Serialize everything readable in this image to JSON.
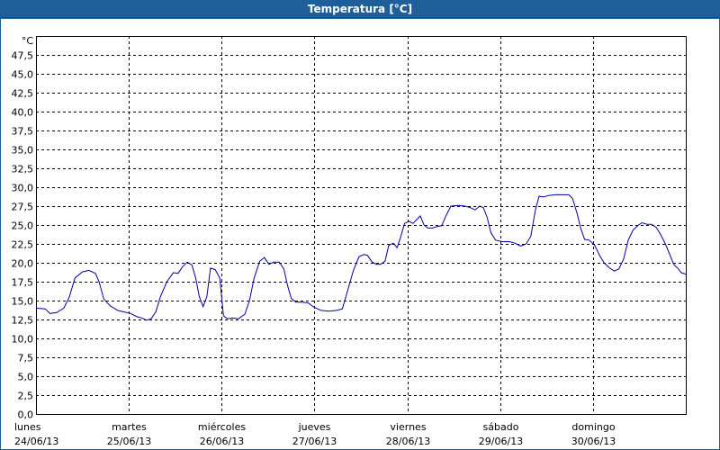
{
  "window": {
    "title": "Temperatura [°C]"
  },
  "chart_data": {
    "type": "line",
    "title": "Temperatura [°C]",
    "ylabel": "°C",
    "ylim": [
      0,
      50
    ],
    "yticks": [
      "0,0",
      "2,5",
      "5,0",
      "7,5",
      "10,0",
      "12,5",
      "15,0",
      "17,5",
      "20,0",
      "22,5",
      "25,0",
      "27,5",
      "30,0",
      "32,5",
      "35,0",
      "37,5",
      "40,0",
      "42,5",
      "45,0",
      "47,5"
    ],
    "xlim": [
      0,
      7
    ],
    "x_labels": [
      {
        "day": "lunes",
        "date": "24/06/13"
      },
      {
        "day": "martes",
        "date": "25/06/13"
      },
      {
        "day": "miércoles",
        "date": "26/06/13"
      },
      {
        "day": "jueves",
        "date": "27/06/13"
      },
      {
        "day": "viernes",
        "date": "28/06/13"
      },
      {
        "day": "sábado",
        "date": "29/06/13"
      },
      {
        "day": "domingo",
        "date": "30/06/13"
      }
    ],
    "grid": true,
    "series": [
      {
        "color": "#0000a0",
        "points": [
          [
            0.0,
            14.0
          ],
          [
            0.1,
            13.9
          ],
          [
            0.15,
            13.3
          ],
          [
            0.22,
            13.4
          ],
          [
            0.3,
            14.0
          ],
          [
            0.36,
            15.5
          ],
          [
            0.42,
            18.0
          ],
          [
            0.5,
            18.8
          ],
          [
            0.57,
            19.0
          ],
          [
            0.64,
            18.6
          ],
          [
            0.68,
            17.5
          ],
          [
            0.73,
            15.2
          ],
          [
            0.8,
            14.3
          ],
          [
            0.88,
            13.7
          ],
          [
            0.95,
            13.5
          ],
          [
            1.02,
            13.3
          ],
          [
            1.08,
            12.9
          ],
          [
            1.14,
            12.7
          ],
          [
            1.19,
            12.4
          ],
          [
            1.24,
            12.6
          ],
          [
            1.29,
            13.5
          ],
          [
            1.34,
            15.5
          ],
          [
            1.41,
            17.5
          ],
          [
            1.48,
            18.7
          ],
          [
            1.53,
            18.6
          ],
          [
            1.58,
            19.5
          ],
          [
            1.63,
            20.1
          ],
          [
            1.68,
            19.7
          ],
          [
            1.72,
            18.0
          ],
          [
            1.76,
            15.5
          ],
          [
            1.8,
            14.2
          ],
          [
            1.84,
            15.5
          ],
          [
            1.88,
            19.3
          ],
          [
            1.93,
            19.1
          ],
          [
            1.98,
            18.0
          ],
          [
            2.02,
            13.0
          ],
          [
            2.06,
            12.6
          ],
          [
            2.12,
            12.7
          ],
          [
            2.18,
            12.6
          ],
          [
            2.25,
            13.2
          ],
          [
            2.3,
            15.0
          ],
          [
            2.35,
            18.0
          ],
          [
            2.41,
            20.2
          ],
          [
            2.46,
            20.7
          ],
          [
            2.51,
            19.8
          ],
          [
            2.56,
            20.1
          ],
          [
            2.62,
            20.1
          ],
          [
            2.67,
            19.2
          ],
          [
            2.71,
            17.0
          ],
          [
            2.75,
            15.3
          ],
          [
            2.8,
            14.8
          ],
          [
            2.86,
            14.8
          ],
          [
            2.93,
            14.7
          ],
          [
            3.0,
            14.1
          ],
          [
            3.07,
            13.7
          ],
          [
            3.15,
            13.6
          ],
          [
            3.24,
            13.7
          ],
          [
            3.3,
            13.9
          ],
          [
            3.35,
            16.0
          ],
          [
            3.42,
            19.0
          ],
          [
            3.48,
            20.8
          ],
          [
            3.53,
            21.1
          ],
          [
            3.57,
            21.0
          ],
          [
            3.62,
            20.1
          ],
          [
            3.67,
            19.8
          ],
          [
            3.71,
            19.8
          ],
          [
            3.76,
            20.2
          ],
          [
            3.8,
            22.3
          ],
          [
            3.85,
            22.6
          ],
          [
            3.89,
            22.0
          ],
          [
            3.93,
            23.5
          ],
          [
            3.97,
            25.2
          ],
          [
            4.02,
            25.5
          ],
          [
            4.06,
            25.2
          ],
          [
            4.1,
            25.7
          ],
          [
            4.14,
            26.2
          ],
          [
            4.18,
            25.0
          ],
          [
            4.22,
            24.6
          ],
          [
            4.27,
            24.6
          ],
          [
            4.32,
            24.8
          ],
          [
            4.37,
            24.9
          ],
          [
            4.42,
            26.3
          ],
          [
            4.47,
            27.5
          ],
          [
            4.55,
            27.6
          ],
          [
            4.62,
            27.5
          ],
          [
            4.68,
            27.3
          ],
          [
            4.73,
            27.0
          ],
          [
            4.78,
            27.5
          ],
          [
            4.82,
            27.3
          ],
          [
            4.86,
            26.0
          ],
          [
            4.9,
            24.0
          ],
          [
            4.95,
            23.0
          ],
          [
            5.02,
            22.8
          ],
          [
            5.1,
            22.8
          ],
          [
            5.16,
            22.6
          ],
          [
            5.22,
            22.2
          ],
          [
            5.28,
            22.5
          ],
          [
            5.33,
            23.5
          ],
          [
            5.38,
            27.0
          ],
          [
            5.42,
            28.8
          ],
          [
            5.47,
            28.7
          ],
          [
            5.52,
            28.9
          ],
          [
            5.6,
            29.0
          ],
          [
            5.68,
            29.0
          ],
          [
            5.74,
            29.0
          ],
          [
            5.78,
            28.5
          ],
          [
            5.83,
            26.5
          ],
          [
            5.87,
            24.5
          ],
          [
            5.91,
            23.1
          ],
          [
            5.96,
            23.0
          ],
          [
            6.02,
            22.3
          ],
          [
            6.07,
            21.0
          ],
          [
            6.12,
            20.0
          ],
          [
            6.18,
            19.3
          ],
          [
            6.23,
            18.9
          ],
          [
            6.28,
            19.2
          ],
          [
            6.33,
            20.5
          ],
          [
            6.38,
            23.0
          ],
          [
            6.43,
            24.3
          ],
          [
            6.49,
            25.0
          ],
          [
            6.53,
            25.3
          ],
          [
            6.58,
            25.1
          ],
          [
            6.63,
            25.1
          ],
          [
            6.68,
            24.7
          ],
          [
            6.73,
            23.7
          ],
          [
            6.78,
            22.5
          ],
          [
            6.83,
            21.0
          ],
          [
            6.87,
            19.8
          ],
          [
            6.92,
            19.2
          ],
          [
            6.95,
            18.7
          ],
          [
            7.0,
            18.5
          ]
        ]
      }
    ]
  }
}
